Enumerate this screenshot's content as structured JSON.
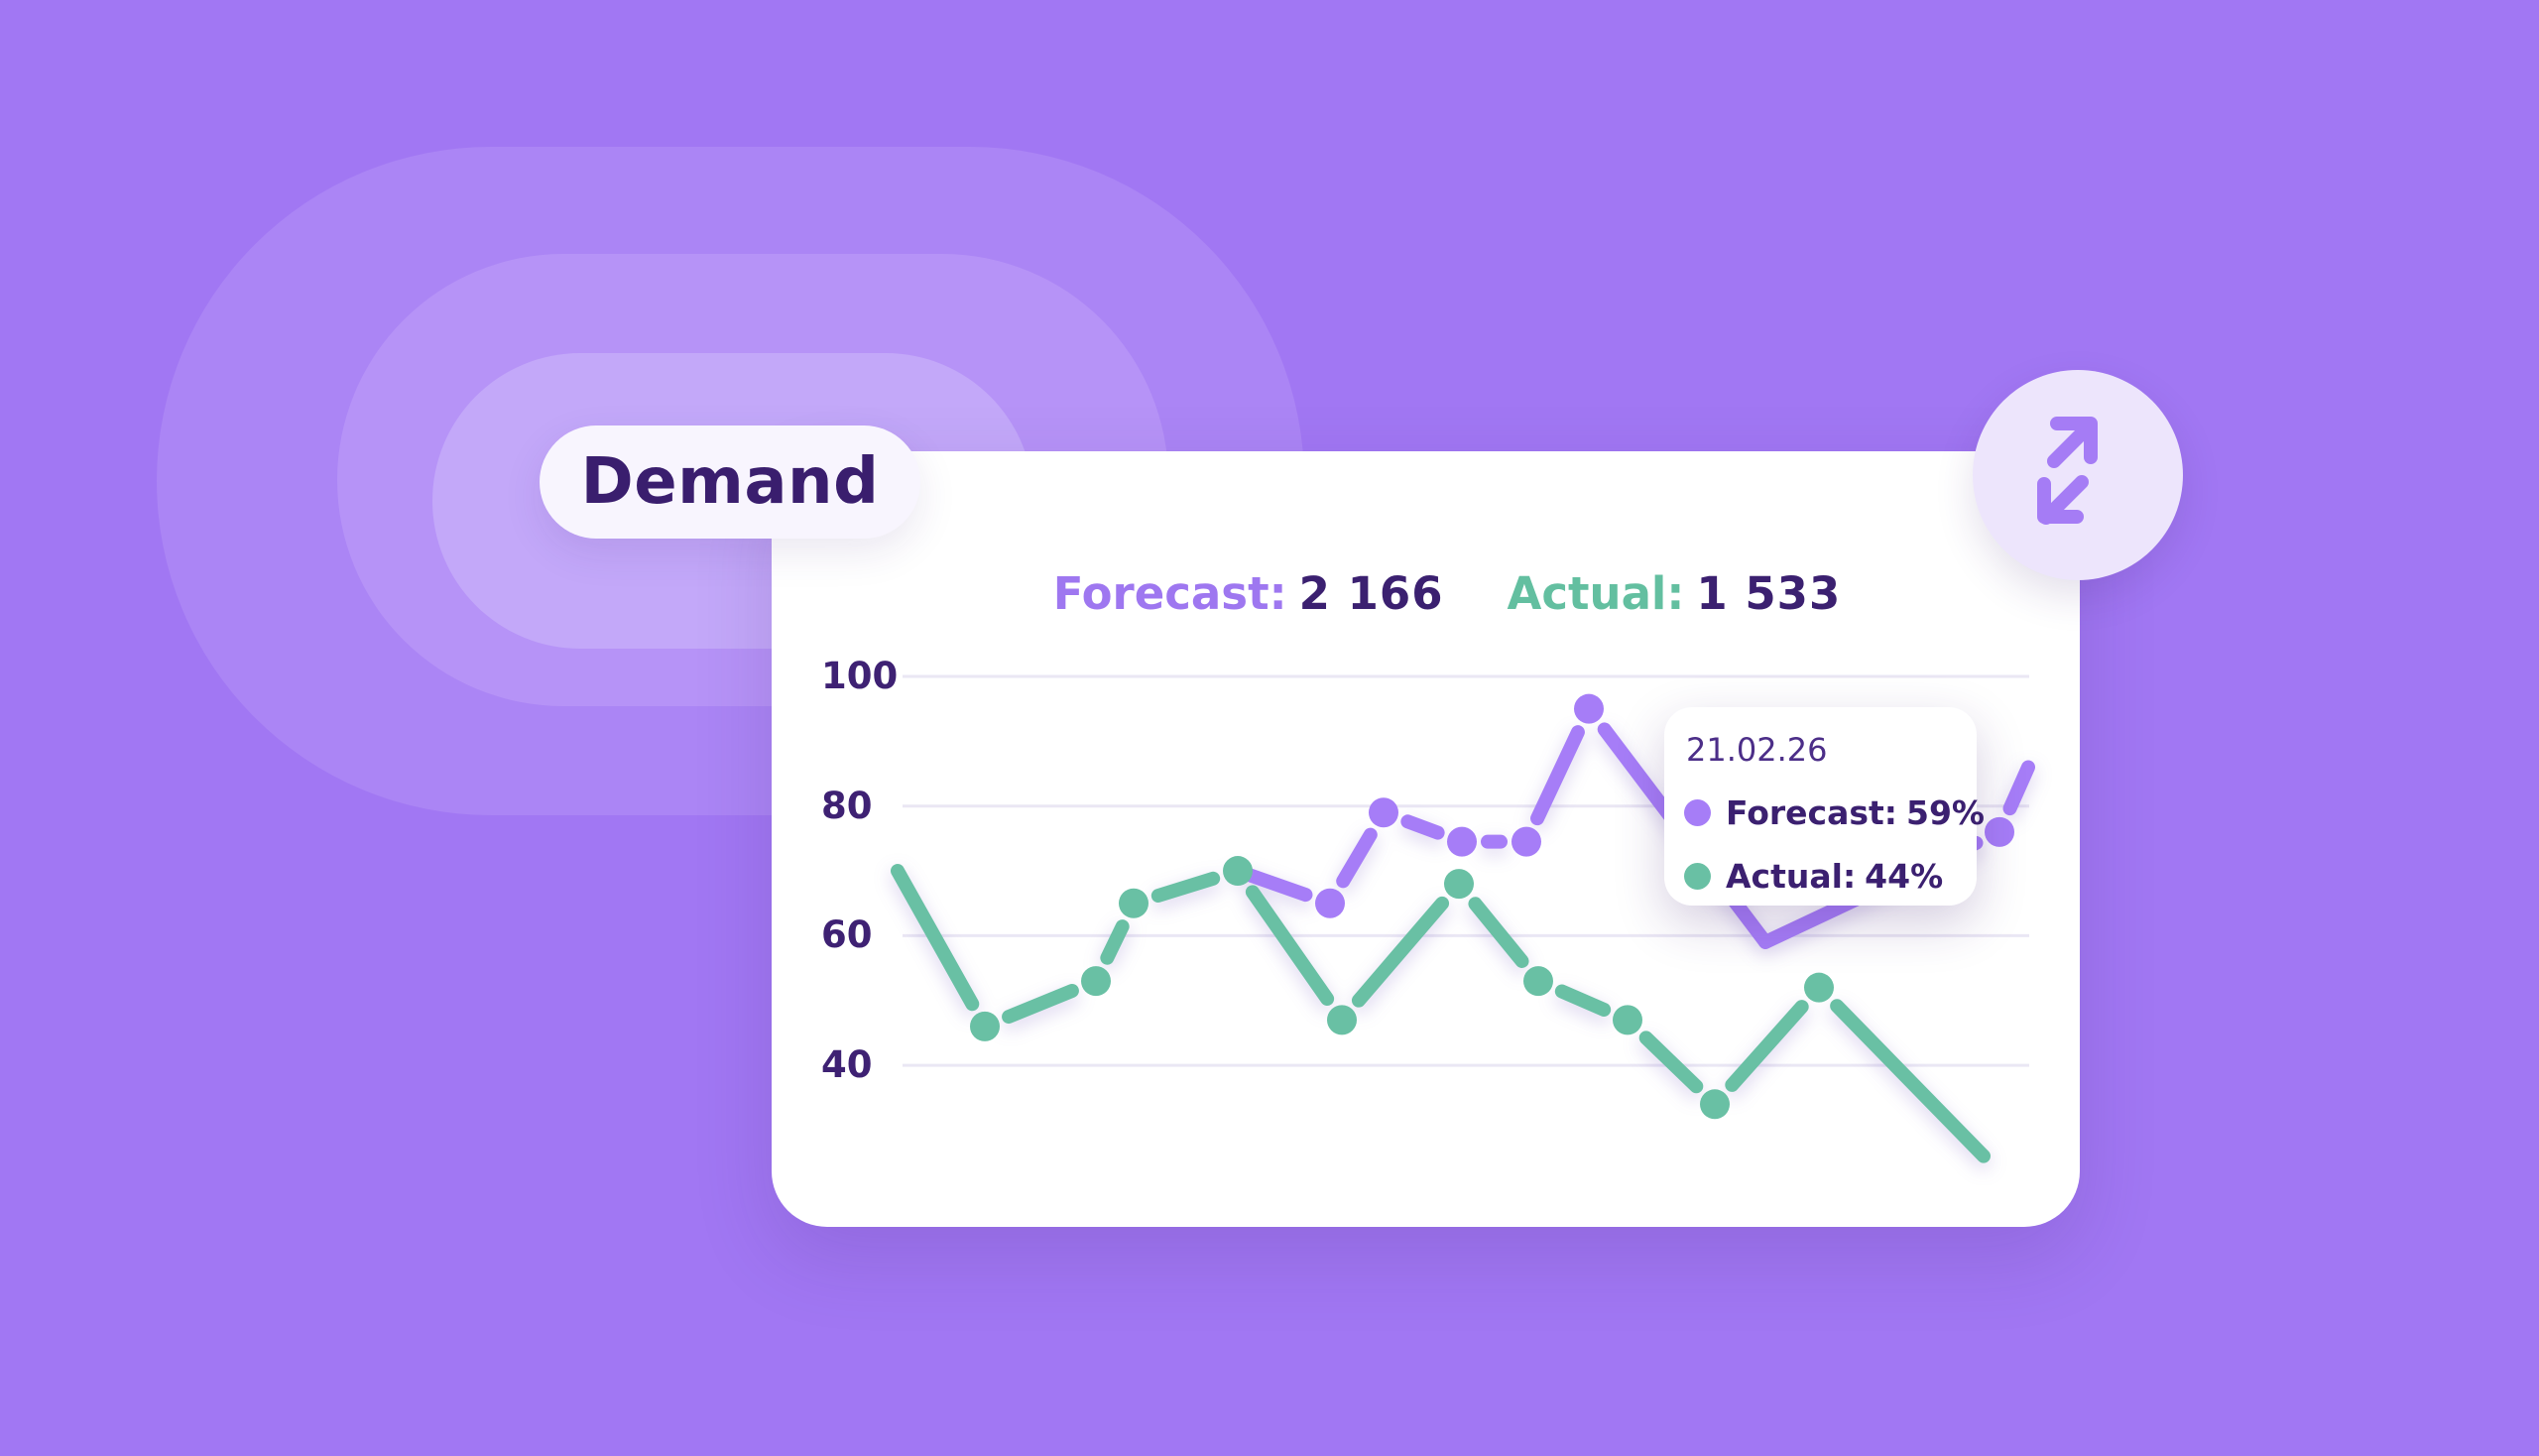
{
  "pill": {
    "label": "Demand"
  },
  "header": {
    "forecast_label": "Forecast:",
    "forecast_value": "2 166",
    "actual_label": "Actual:",
    "actual_value": "1 533"
  },
  "tooltip": {
    "date": "21.02.26",
    "rows": [
      {
        "series": "Forecast",
        "label": "Forecast:",
        "value": "59%"
      },
      {
        "series": "Actual",
        "label": "Actual:",
        "value": "44%"
      }
    ]
  },
  "icons": {
    "expand": "expand-diagonal-arrows"
  },
  "colors": {
    "background": "#A177F3",
    "ring1": "#AB85F5",
    "ring2": "#B693F7",
    "ring3": "#C3A8F9",
    "card": "#FFFFFF",
    "pill_bg": "#F8F5FE",
    "dark_text": "#3B2070",
    "axis_text": "#3E2173",
    "gridline": "#EAE7F4",
    "forecast_line": "#A67DF7",
    "actual_line": "#69C0A4",
    "tooltip_date_text": "#4C2E88",
    "icon_purple": "#A57CF5",
    "circle_bg": "#EDE5FC"
  },
  "chart_data": {
    "type": "line",
    "unit": "%",
    "title": "Demand",
    "xlabel": "",
    "ylabel": "",
    "y_ticks": [
      100,
      80,
      60,
      40
    ],
    "ylim": [
      20,
      105
    ],
    "grid": "horizontal",
    "legend_position": "tooltip",
    "hovered_point": {
      "date": "21.02.26",
      "forecast": 59,
      "actual": 44
    },
    "series": [
      {
        "name": "Forecast",
        "color": "#A67DF7",
        "values": [
          70,
          65,
          79,
          74.5,
          74.5,
          95,
          59,
          76,
          86
        ],
        "points": [
          {
            "x": 1248,
            "v": 70,
            "dot": false
          },
          {
            "x": 1341,
            "v": 65,
            "dot": true
          },
          {
            "x": 1395,
            "v": 79,
            "dot": true
          },
          {
            "x": 1474,
            "v": 74.5,
            "dot": true
          },
          {
            "x": 1539,
            "v": 74.5,
            "dot": true
          },
          {
            "x": 1602,
            "v": 95,
            "dot": true
          },
          {
            "x": 1780,
            "v": 59,
            "dot": false
          },
          {
            "x": 2016,
            "v": 76,
            "dot": true
          },
          {
            "x": 2045,
            "v": 86,
            "dot": false
          }
        ]
      },
      {
        "name": "Actual",
        "color": "#69C0A4",
        "values": [
          70,
          46,
          53,
          65,
          70,
          47,
          68,
          53,
          47,
          34,
          52,
          26
        ],
        "points": [
          {
            "x": 905,
            "v": 70,
            "dot": false
          },
          {
            "x": 993,
            "v": 46,
            "dot": true
          },
          {
            "x": 1105,
            "v": 53,
            "dot": true
          },
          {
            "x": 1143,
            "v": 65,
            "dot": true
          },
          {
            "x": 1248,
            "v": 70,
            "dot": true
          },
          {
            "x": 1353,
            "v": 47,
            "dot": true
          },
          {
            "x": 1471,
            "v": 68,
            "dot": true
          },
          {
            "x": 1551,
            "v": 53,
            "dot": true
          },
          {
            "x": 1641,
            "v": 47,
            "dot": true
          },
          {
            "x": 1729,
            "v": 34,
            "dot": true
          },
          {
            "x": 1834,
            "v": 52,
            "dot": true
          },
          {
            "x": 2000,
            "v": 26,
            "dot": false
          }
        ]
      }
    ]
  }
}
